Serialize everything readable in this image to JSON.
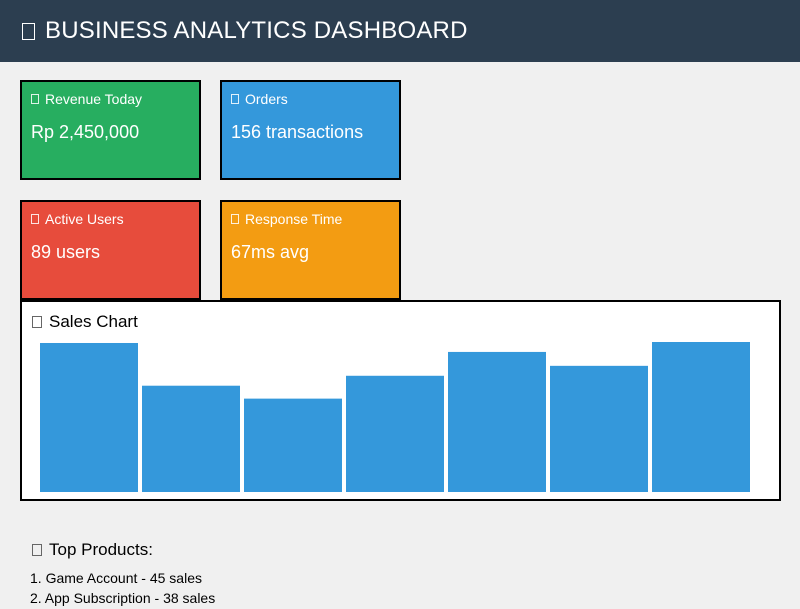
{
  "header": {
    "title": "BUSINESS ANALYTICS DASHBOARD",
    "icon": "chart-icon"
  },
  "cards": {
    "revenue": {
      "label": "Revenue Today",
      "value": "Rp 2,450,000",
      "color": "#27ae60",
      "icon": "money-icon"
    },
    "orders": {
      "label": "Orders",
      "value": "156 transactions",
      "color": "#3498db",
      "icon": "box-icon"
    },
    "users": {
      "label": "Active Users",
      "value": "89 users",
      "color": "#e74c3c",
      "icon": "users-icon"
    },
    "response": {
      "label": "Response Time",
      "value": "67ms avg",
      "color": "#f39c12",
      "icon": "lightning-icon"
    }
  },
  "chart": {
    "title": "Sales Chart",
    "icon": "chart-icon",
    "bar_color": "#3498db"
  },
  "chart_data": {
    "type": "bar",
    "categories": [
      "",
      "",
      "",
      "",
      "",
      "",
      ""
    ],
    "values": [
      150,
      107,
      94,
      117,
      141,
      127,
      151
    ],
    "title": "Sales Chart",
    "xlabel": "",
    "ylabel": "",
    "ylim": [
      0,
      151
    ],
    "grid": false,
    "legend": "none"
  },
  "top_products": {
    "title": "Top Products:",
    "icon": "trophy-icon",
    "items": [
      "1. Game Account - 45 sales",
      "2. App Subscription - 38 sales"
    ]
  }
}
